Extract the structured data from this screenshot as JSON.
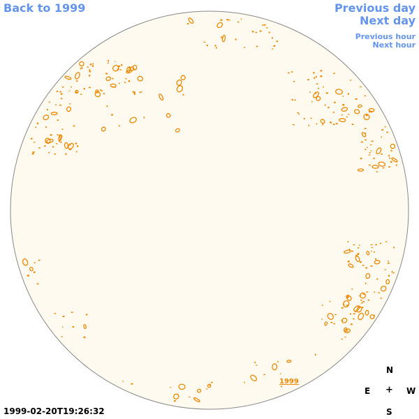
{
  "nav": {
    "back_label": "Back to 1999",
    "previous_day_label": "Previous day",
    "next_day_label": "Next day",
    "previous_hour_label": "Previous hour",
    "next_hour_label": "Next hour"
  },
  "timestamp": "1999-02-20T19:26:32",
  "year_marker": "1999",
  "compass": {
    "north": "N",
    "east": "E",
    "center": "+",
    "west": "W",
    "south": "S"
  },
  "colors": {
    "link": "#6495ed",
    "disc_fill": "#fffaf0",
    "disc_stroke": "#888888",
    "contour": "#ee8800"
  }
}
